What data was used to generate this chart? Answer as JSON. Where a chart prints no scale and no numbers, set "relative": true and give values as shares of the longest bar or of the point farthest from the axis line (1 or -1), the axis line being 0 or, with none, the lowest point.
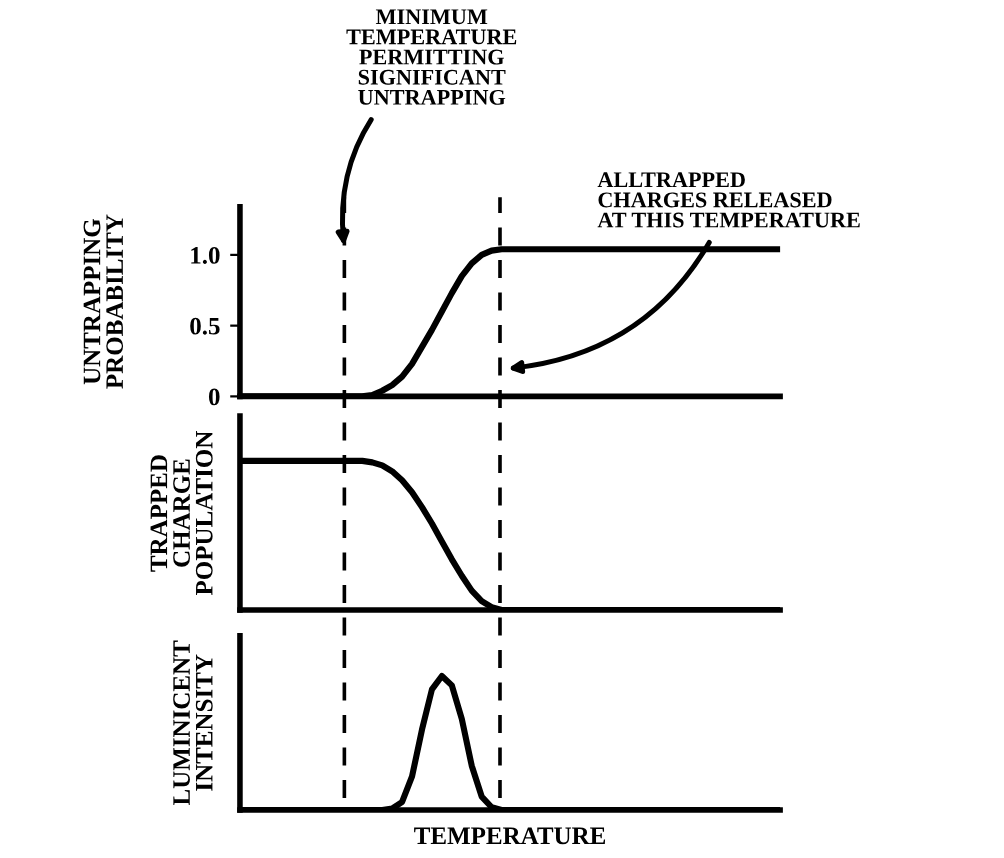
{
  "chart_data": [
    {
      "type": "line",
      "ylabel": "UNTRAPPING\nPROBABILITY",
      "categories": [
        null,
        null,
        null,
        null,
        null,
        null,
        null,
        null,
        null,
        null,
        null,
        null,
        null,
        null,
        null,
        null,
        null,
        null,
        null,
        null,
        null,
        null,
        null,
        null,
        null,
        null,
        null,
        null,
        null,
        null,
        null,
        null,
        null,
        null,
        null,
        null,
        null,
        null,
        null,
        null,
        null,
        null,
        null,
        null,
        null,
        null,
        null,
        null,
        null,
        null,
        null,
        null,
        null,
        null,
        null
      ],
      "series": [
        {
          "color": "#000000",
          "values": [
            0,
            0,
            0,
            0,
            0,
            0,
            0,
            0,
            0,
            0,
            0,
            0,
            0,
            0.01,
            0.04,
            0.08,
            0.14,
            0.23,
            0.35,
            0.47,
            0.6,
            0.73,
            0.85,
            0.94,
            1.0,
            1.03,
            1.04,
            1.04,
            1.04,
            1.04,
            1.04,
            1.04,
            1.04,
            1.04,
            1.04,
            1.04,
            1.04,
            1.04,
            1.04,
            1.04,
            1.04,
            1.04,
            1.04,
            1.04,
            1.04,
            1.04,
            1.04,
            1.04,
            1.04,
            1.04,
            1.04,
            1.04,
            1.04,
            1.04,
            1.04
          ]
        }
      ],
      "ylim": [
        0,
        1.34
      ],
      "yticks": [
        0,
        0.5,
        {
          "value": 1.0,
          "label": "1.0"
        }
      ],
      "tick_labels": "y",
      "grid": false,
      "legend": false,
      "line_style": "solid",
      "annotations": [
        "MINIMUM\nTEMPERATURE\nPERMITTING\nSIGNIFICANT\nUNTRAPPING",
        "ALLTRAPPED\nCHARGES RELEASED\nAT THIS TEMPERATURE"
      ]
    },
    {
      "type": "line",
      "ylabel": "TRAPPED\nCHARGE\nPOPULATION",
      "relative": true,
      "categories": [
        null,
        null,
        null,
        null,
        null,
        null,
        null,
        null,
        null,
        null,
        null,
        null,
        null,
        null,
        null,
        null,
        null,
        null,
        null,
        null,
        null,
        null,
        null,
        null,
        null,
        null,
        null,
        null,
        null,
        null,
        null,
        null,
        null,
        null,
        null,
        null,
        null,
        null,
        null,
        null,
        null,
        null,
        null,
        null,
        null,
        null,
        null,
        null,
        null,
        null,
        null,
        null,
        null,
        null,
        null
      ],
      "series": [
        {
          "color": "#000000",
          "values": [
            1,
            1,
            1,
            1,
            1,
            1,
            1,
            1,
            1,
            1,
            1,
            1,
            1,
            0.99,
            0.97,
            0.93,
            0.87,
            0.79,
            0.69,
            0.58,
            0.46,
            0.34,
            0.23,
            0.13,
            0.06,
            0.02,
            0,
            0,
            0,
            0,
            0,
            0,
            0,
            0,
            0,
            0,
            0,
            0,
            0,
            0,
            0,
            0,
            0,
            0,
            0,
            0,
            0,
            0,
            0,
            0,
            0,
            0,
            0,
            0,
            0
          ]
        }
      ],
      "tick_labels": false,
      "grid": false,
      "legend": false,
      "line_style": "solid"
    },
    {
      "type": "line",
      "ylabel": "LUMINICENT\nINTENSITY",
      "xlabel": "TEMPERATURE",
      "relative": true,
      "categories": [
        null,
        null,
        null,
        null,
        null,
        null,
        null,
        null,
        null,
        null,
        null,
        null,
        null,
        null,
        null,
        null,
        null,
        null,
        null,
        null,
        null,
        null,
        null,
        null,
        null,
        null,
        null,
        null,
        null,
        null,
        null,
        null,
        null,
        null,
        null,
        null,
        null,
        null,
        null,
        null,
        null,
        null,
        null,
        null,
        null,
        null,
        null,
        null,
        null,
        null,
        null,
        null,
        null,
        null,
        null
      ],
      "series": [
        {
          "color": "#000000",
          "values": [
            0,
            0,
            0,
            0,
            0,
            0,
            0,
            0,
            0,
            0,
            0,
            0,
            0,
            0,
            0,
            0.01,
            0.06,
            0.25,
            0.6,
            0.9,
            1.0,
            0.93,
            0.68,
            0.33,
            0.1,
            0.02,
            0,
            0,
            0,
            0,
            0,
            0,
            0,
            0,
            0,
            0,
            0,
            0,
            0,
            0,
            0,
            0,
            0,
            0,
            0,
            0,
            0,
            0,
            0,
            0,
            0,
            0,
            0,
            0,
            0
          ]
        }
      ],
      "tick_labels": false,
      "grid": false,
      "legend": false,
      "line_style": "solid"
    }
  ]
}
